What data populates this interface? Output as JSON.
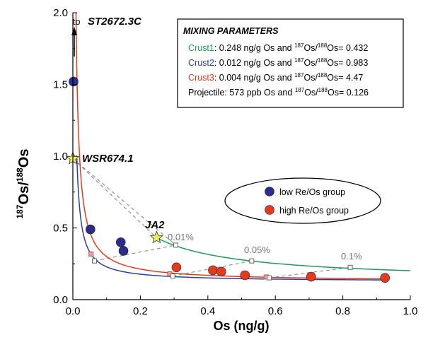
{
  "chart_data": {
    "type": "scatter",
    "xlabel": "Os (ng/g)",
    "ylabel": "187Os/188Os",
    "ylabel_parts": {
      "sup1": "187",
      "mid": "Os/",
      "sup2": "188",
      "end": "Os"
    },
    "xlim": [
      0,
      1.0
    ],
    "ylim": [
      0,
      2.0
    ],
    "x_ticks": [
      "0.0",
      "0.2",
      "0.4",
      "0.6",
      "0.8",
      "1.0"
    ],
    "y_ticks": [
      "0.0",
      "0.5",
      "1.0",
      "1.5",
      "2.0"
    ],
    "grid": false,
    "legend": {
      "placement": "right",
      "entries": [
        {
          "label": "low Re/Os group",
          "color": "#2a2d8c"
        },
        {
          "label": "high Re/Os group",
          "color": "#e63a1e"
        }
      ]
    },
    "mixing_box": {
      "title": "MIXING PARAMETERS",
      "rows": [
        {
          "name": "Crust1",
          "color": "#17a05a",
          "text": ": 0.248 ng/g Os and ",
          "iso": "Os/",
          "sup1": "187",
          "sup2": "188",
          "value": "Os= 0.432"
        },
        {
          "name": "Crust2",
          "color": "#2a3ea8",
          "text": ": 0.012 ng/g Os and ",
          "iso": "Os/",
          "sup1": "187",
          "sup2": "188",
          "value": "Os= 0.983"
        },
        {
          "name": "Crust3",
          "color": "#e63a1e",
          "text": ": 0.004 ng/g Os and ",
          "iso": "Os/",
          "sup1": "187",
          "sup2": "188",
          "value": "Os= 4.47"
        },
        {
          "name": "Projectile",
          "color": "#000000",
          "text": ": 573 ppb Os and ",
          "iso": "Os/",
          "sup1": "187",
          "sup2": "188",
          "value": "Os= 0.126"
        }
      ]
    },
    "annotations": {
      "arrow_label_prefix": "to ",
      "arrow_label_sample": "ST2672.3C",
      "star1_label": "WSR674.1",
      "star2_label": "JA2",
      "pct_labels": [
        "0.01%",
        "0.05%",
        "0.1%"
      ]
    },
    "series": [
      {
        "name": "low Re/Os group",
        "color": "#2a2d8c",
        "points": [
          {
            "x": 0.002,
            "y": 1.52
          },
          {
            "x": 0.052,
            "y": 0.49
          },
          {
            "x": 0.142,
            "y": 0.4
          },
          {
            "x": 0.15,
            "y": 0.34
          }
        ]
      },
      {
        "name": "high Re/Os group",
        "color": "#e63a1e",
        "points": [
          {
            "x": 0.307,
            "y": 0.225
          },
          {
            "x": 0.415,
            "y": 0.205
          },
          {
            "x": 0.44,
            "y": 0.195
          },
          {
            "x": 0.51,
            "y": 0.17
          },
          {
            "x": 0.706,
            "y": 0.16
          },
          {
            "x": 0.925,
            "y": 0.152
          }
        ]
      }
    ],
    "stars": [
      {
        "x": 0.0,
        "y": 0.983,
        "color": "#f7ea5a"
      },
      {
        "x": 0.248,
        "y": 0.432,
        "color": "#f7ea5a"
      }
    ],
    "mixing_curves": [
      {
        "name": "Crust1",
        "color": "#17a05a",
        "os": 0.248,
        "ratio": 0.432
      },
      {
        "name": "Crust2",
        "color": "#2a3ea8",
        "os": 0.012,
        "ratio": 0.983
      },
      {
        "name": "Crust3",
        "color": "#e63a1e",
        "os": 0.004,
        "ratio": 4.47
      }
    ],
    "projectile": {
      "os": 573,
      "ratio": 0.126
    },
    "pct_markers": [
      {
        "label": "0.01%",
        "points": [
          {
            "x": 0.054,
            "y": 0.318
          },
          {
            "x": 0.064,
            "y": 0.27
          },
          {
            "x": 0.305,
            "y": 0.38
          }
        ]
      },
      {
        "label": "0.05%",
        "points": [
          {
            "x": 0.287,
            "y": 0.18
          },
          {
            "x": 0.296,
            "y": 0.165
          },
          {
            "x": 0.53,
            "y": 0.27
          }
        ]
      },
      {
        "label": "0.1%",
        "points": [
          {
            "x": 0.573,
            "y": 0.158
          },
          {
            "x": 0.582,
            "y": 0.152
          },
          {
            "x": 0.822,
            "y": 0.225
          }
        ]
      }
    ]
  }
}
